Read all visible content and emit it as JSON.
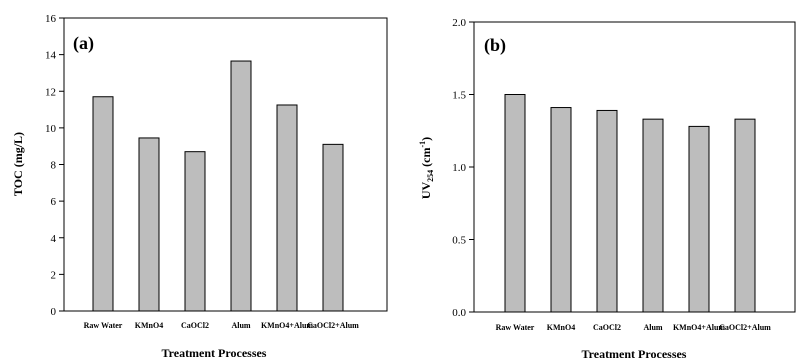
{
  "chart_data": [
    {
      "type": "bar",
      "panel_label": "(a)",
      "categories": [
        "Raw Water",
        "KMnO4",
        "CaOCl2",
        "Alum",
        "KMnO4+Alum",
        "CaOCl2+Alum"
      ],
      "values": [
        11.7,
        9.45,
        8.7,
        13.65,
        11.25,
        9.1
      ],
      "ylabel": "TOC (mg/L)",
      "xlabel": "Treatment Processes",
      "ylim": [
        0,
        16
      ],
      "yticks": [
        "0",
        "2",
        "4",
        "6",
        "8",
        "10",
        "12",
        "14",
        "16"
      ],
      "bar_color": "#bdbdbd",
      "grid": false
    },
    {
      "type": "bar",
      "panel_label": "(b)",
      "categories": [
        "Raw Water",
        "KMnO4",
        "CaOCl2",
        "Alum",
        "KMnO4+Alum",
        "CaOCl2+Alum"
      ],
      "values": [
        1.5,
        1.41,
        1.39,
        1.33,
        1.28,
        1.33
      ],
      "ylabel_main": "UV",
      "ylabel_sub": "254",
      "ylabel_unit": "(cm",
      "ylabel_sup": "-1",
      "ylabel_close": ")",
      "xlabel": "Treatment Processes",
      "ylim": [
        0,
        2.0
      ],
      "yticks": [
        "0.0",
        "0.5",
        "1.0",
        "1.5",
        "2.0"
      ],
      "bar_color": "#bdbdbd",
      "grid": false
    }
  ]
}
